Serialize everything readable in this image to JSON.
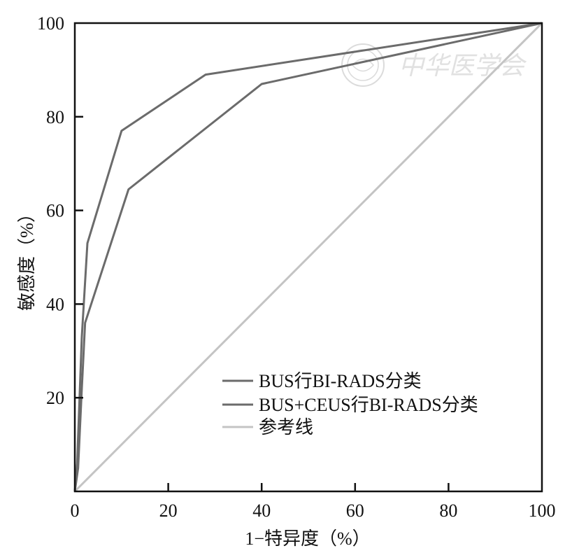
{
  "chart_data": {
    "type": "line",
    "xlabel": "1−特异度（%）",
    "ylabel": "敏感度（%）",
    "xlim": [
      0,
      100
    ],
    "ylim": [
      0,
      100
    ],
    "x_ticks": [
      "0",
      "20",
      "40",
      "60",
      "80",
      "100"
    ],
    "y_ticks": [
      "20",
      "40",
      "60",
      "80",
      "100"
    ],
    "grid": false,
    "legend_position": "lower-right",
    "watermark_text": "中华医学会",
    "series": [
      {
        "name": "BUS行BI-RADS分类",
        "color": "#6b6b6b",
        "points": [
          [
            0,
            0
          ],
          [
            0.5,
            6
          ],
          [
            1.5,
            33
          ],
          [
            2.7,
            53
          ],
          [
            10,
            77
          ],
          [
            28,
            89
          ],
          [
            100,
            100
          ]
        ]
      },
      {
        "name": "BUS+CEUS行BI-RADS分类",
        "color": "#6b6b6b",
        "points": [
          [
            0,
            0
          ],
          [
            0.7,
            5
          ],
          [
            1.5,
            22
          ],
          [
            2.2,
            36
          ],
          [
            11.5,
            64.5
          ],
          [
            40,
            87
          ],
          [
            100,
            100
          ]
        ]
      },
      {
        "name": "参考线",
        "color": "#c4c4c4",
        "points": [
          [
            0,
            0
          ],
          [
            100,
            100
          ]
        ]
      }
    ]
  }
}
